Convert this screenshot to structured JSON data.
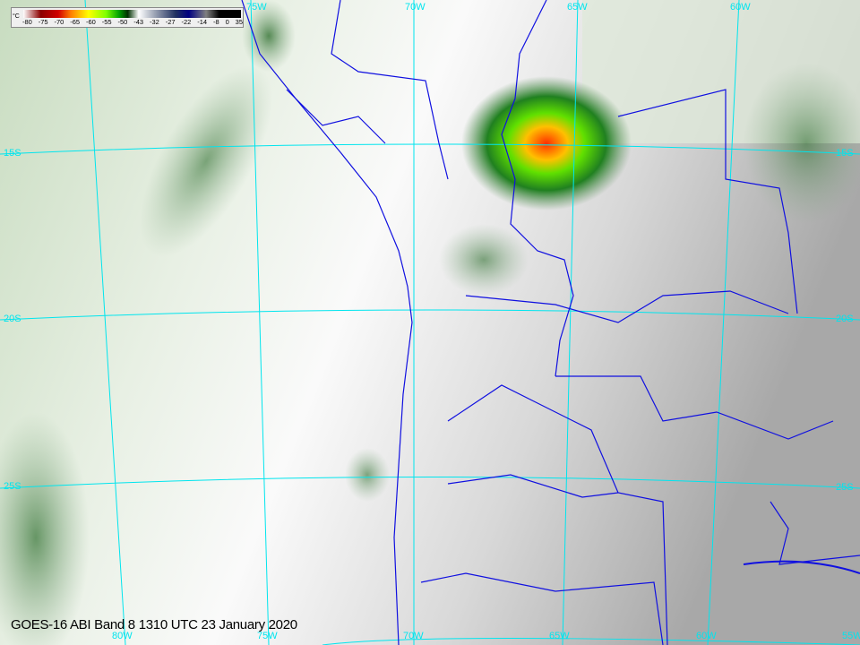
{
  "colorbar": {
    "unit": "°C",
    "ticks": [
      "-80",
      "-75",
      "-70",
      "-65",
      "-60",
      "-55",
      "-50",
      "-43",
      "-32",
      "-27",
      "-22",
      "-14",
      "-8",
      "0",
      "35"
    ]
  },
  "caption": "GOES-16 ABI Band 8 1310 UTC 23 January 2020",
  "grid_labels": {
    "top": [
      "75W",
      "70W",
      "65W",
      "60W"
    ],
    "bottom": [
      "80W",
      "75W",
      "70W",
      "65W",
      "60W",
      "55W"
    ],
    "left": [
      "15S",
      "20S",
      "25S"
    ],
    "right": [
      "15S",
      "20S",
      "25S"
    ]
  },
  "colors": {
    "grid": "#00e5ee",
    "borders": "#1010e0",
    "convection": "#00a000"
  }
}
